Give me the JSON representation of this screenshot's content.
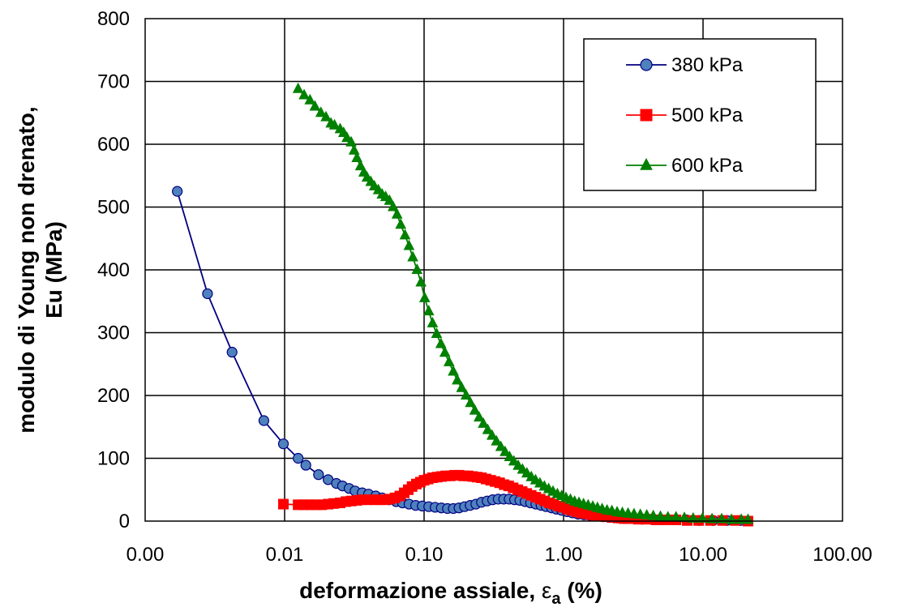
{
  "chart_data": {
    "type": "scatter",
    "x_scale": "log",
    "xlim": [
      0.001,
      100
    ],
    "ylim": [
      0,
      800
    ],
    "grid": true,
    "legend_position": "top-right",
    "xlabel_main": "deformazione assiale, ",
    "xlabel_symbol": "ε",
    "xlabel_subscript": "a",
    "xlabel_unit": " (%)",
    "ylabel_line1": "modulo di Young non drenato,",
    "ylabel_line2": "Eu (MPa)",
    "x_tick_labels": [
      "0.00",
      "0.01",
      "0.10",
      "1.00",
      "10.00",
      "100.00"
    ],
    "y_tick_labels": [
      "0",
      "100",
      "200",
      "300",
      "400",
      "500",
      "600",
      "700",
      "800"
    ],
    "series": [
      {
        "name": "380 kPa",
        "color": "#000080",
        "marker_fill": "#4F81BD",
        "marker": "circle",
        "points": [
          [
            0.0017,
            525
          ],
          [
            0.0028,
            362
          ],
          [
            0.0042,
            269
          ],
          [
            0.0071,
            160
          ],
          [
            0.0098,
            123
          ],
          [
            0.0125,
            100
          ],
          [
            0.0142,
            89
          ],
          [
            0.0175,
            74
          ],
          [
            0.0205,
            66
          ],
          [
            0.0235,
            60
          ],
          [
            0.026,
            56
          ],
          [
            0.029,
            52
          ],
          [
            0.032,
            48
          ],
          [
            0.036,
            45
          ],
          [
            0.04,
            43
          ],
          [
            0.045,
            40
          ],
          [
            0.05,
            37
          ],
          [
            0.056,
            34
          ],
          [
            0.063,
            31
          ],
          [
            0.07,
            29
          ],
          [
            0.078,
            27
          ],
          [
            0.087,
            25
          ],
          [
            0.097,
            24
          ],
          [
            0.108,
            23
          ],
          [
            0.12,
            22
          ],
          [
            0.133,
            21
          ],
          [
            0.147,
            20
          ],
          [
            0.162,
            20
          ],
          [
            0.178,
            21
          ],
          [
            0.195,
            23
          ],
          [
            0.214,
            25
          ],
          [
            0.235,
            27
          ],
          [
            0.258,
            30
          ],
          [
            0.283,
            32
          ],
          [
            0.31,
            34
          ],
          [
            0.34,
            35
          ],
          [
            0.372,
            35
          ],
          [
            0.407,
            35
          ],
          [
            0.445,
            34
          ],
          [
            0.486,
            33
          ],
          [
            0.53,
            31
          ],
          [
            0.58,
            29
          ],
          [
            0.633,
            27
          ],
          [
            0.69,
            25
          ],
          [
            0.75,
            23
          ],
          [
            0.82,
            21
          ],
          [
            0.89,
            19
          ],
          [
            0.97,
            17
          ],
          [
            1.06,
            15
          ],
          [
            1.16,
            13
          ],
          [
            1.27,
            11
          ],
          [
            1.4,
            10
          ],
          [
            1.55,
            9
          ],
          [
            1.72,
            8
          ],
          [
            1.92,
            7
          ],
          [
            2.15,
            6
          ],
          [
            2.42,
            5
          ],
          [
            2.75,
            4
          ],
          [
            3.15,
            4
          ],
          [
            3.65,
            3
          ],
          [
            4.3,
            3
          ],
          [
            5.1,
            2
          ],
          [
            6.2,
            2
          ],
          [
            7.6,
            2
          ],
          [
            9.4,
            1
          ],
          [
            11.8,
            1
          ],
          [
            14.8,
            1
          ],
          [
            18.5,
            1
          ]
        ]
      },
      {
        "name": "500 kPa",
        "color": "#FF0000",
        "marker_fill": "#FF0000",
        "marker": "square",
        "points": [
          [
            0.0098,
            27
          ],
          [
            0.0125,
            26
          ],
          [
            0.0138,
            26
          ],
          [
            0.0152,
            26
          ],
          [
            0.0168,
            26
          ],
          [
            0.0185,
            26
          ],
          [
            0.0205,
            27
          ],
          [
            0.0225,
            28
          ],
          [
            0.025,
            29
          ],
          [
            0.0275,
            31
          ],
          [
            0.03,
            32
          ],
          [
            0.033,
            33
          ],
          [
            0.036,
            34
          ],
          [
            0.04,
            34
          ],
          [
            0.044,
            34
          ],
          [
            0.048,
            34
          ],
          [
            0.052,
            34
          ],
          [
            0.057,
            35
          ],
          [
            0.062,
            37
          ],
          [
            0.067,
            40
          ],
          [
            0.072,
            45
          ],
          [
            0.077,
            50
          ],
          [
            0.082,
            55
          ],
          [
            0.088,
            59
          ],
          [
            0.094,
            62
          ],
          [
            0.1,
            65
          ],
          [
            0.107,
            67
          ],
          [
            0.115,
            69
          ],
          [
            0.124,
            70
          ],
          [
            0.133,
            71
          ],
          [
            0.143,
            72
          ],
          [
            0.154,
            72
          ],
          [
            0.166,
            73
          ],
          [
            0.178,
            73
          ],
          [
            0.192,
            72
          ],
          [
            0.207,
            72
          ],
          [
            0.223,
            71
          ],
          [
            0.24,
            70
          ],
          [
            0.258,
            69
          ],
          [
            0.278,
            67
          ],
          [
            0.3,
            65
          ],
          [
            0.323,
            63
          ],
          [
            0.348,
            61
          ],
          [
            0.375,
            58
          ],
          [
            0.404,
            56
          ],
          [
            0.435,
            53
          ],
          [
            0.469,
            50
          ],
          [
            0.505,
            47
          ],
          [
            0.544,
            44
          ],
          [
            0.586,
            41
          ],
          [
            0.632,
            38
          ],
          [
            0.68,
            35
          ],
          [
            0.733,
            32
          ],
          [
            0.79,
            29
          ],
          [
            0.85,
            27
          ],
          [
            0.92,
            24
          ],
          [
            0.99,
            22
          ],
          [
            1.07,
            19
          ],
          [
            1.15,
            17
          ],
          [
            1.24,
            15
          ],
          [
            1.34,
            13
          ],
          [
            1.45,
            12
          ],
          [
            1.57,
            10
          ],
          [
            1.7,
            9
          ],
          [
            1.85,
            8
          ],
          [
            2.02,
            7
          ],
          [
            2.22,
            6
          ],
          [
            2.45,
            5
          ],
          [
            2.72,
            4
          ],
          [
            3.05,
            4
          ],
          [
            3.45,
            3
          ],
          [
            3.95,
            3
          ],
          [
            4.6,
            2
          ],
          [
            5.4,
            2
          ],
          [
            6.4,
            2
          ],
          [
            7.7,
            1
          ],
          [
            9.3,
            1
          ],
          [
            11.3,
            1
          ],
          [
            13.8,
            1
          ],
          [
            17,
            1
          ],
          [
            21,
            0
          ]
        ]
      },
      {
        "name": "600 kPa",
        "color": "#008000",
        "marker_fill": "#008000",
        "marker": "triangle",
        "points": [
          [
            0.0125,
            688
          ],
          [
            0.0138,
            678
          ],
          [
            0.0152,
            670
          ],
          [
            0.0165,
            660
          ],
          [
            0.0182,
            650
          ],
          [
            0.0198,
            643
          ],
          [
            0.0215,
            633
          ],
          [
            0.0228,
            630
          ],
          [
            0.025,
            624
          ],
          [
            0.0265,
            618
          ],
          [
            0.028,
            610
          ],
          [
            0.03,
            603
          ],
          [
            0.0315,
            590
          ],
          [
            0.033,
            578
          ],
          [
            0.035,
            565
          ],
          [
            0.037,
            555
          ],
          [
            0.039,
            547
          ],
          [
            0.0415,
            540
          ],
          [
            0.044,
            533
          ],
          [
            0.047,
            527
          ],
          [
            0.05,
            520
          ],
          [
            0.053,
            516
          ],
          [
            0.0565,
            510
          ],
          [
            0.06,
            500
          ],
          [
            0.064,
            488
          ],
          [
            0.068,
            472
          ],
          [
            0.073,
            455
          ],
          [
            0.078,
            438
          ],
          [
            0.083,
            420
          ],
          [
            0.089,
            400
          ],
          [
            0.095,
            380
          ],
          [
            0.101,
            355
          ],
          [
            0.108,
            334
          ],
          [
            0.115,
            315
          ],
          [
            0.123,
            298
          ],
          [
            0.132,
            282
          ],
          [
            0.141,
            268
          ],
          [
            0.151,
            253
          ],
          [
            0.162,
            238
          ],
          [
            0.173,
            224
          ],
          [
            0.186,
            212
          ],
          [
            0.2,
            200
          ],
          [
            0.215,
            188
          ],
          [
            0.231,
            176
          ],
          [
            0.248,
            165
          ],
          [
            0.266,
            155
          ],
          [
            0.286,
            145
          ],
          [
            0.307,
            136
          ],
          [
            0.33,
            127
          ],
          [
            0.355,
            118
          ],
          [
            0.381,
            110
          ],
          [
            0.41,
            102
          ],
          [
            0.44,
            95
          ],
          [
            0.473,
            88
          ],
          [
            0.508,
            82
          ],
          [
            0.546,
            76
          ],
          [
            0.587,
            70
          ],
          [
            0.63,
            65
          ],
          [
            0.677,
            60
          ],
          [
            0.728,
            55
          ],
          [
            0.782,
            51
          ],
          [
            0.84,
            47
          ],
          [
            0.903,
            43
          ],
          [
            0.97,
            40
          ],
          [
            1.04,
            37
          ],
          [
            1.12,
            34
          ],
          [
            1.2,
            31
          ],
          [
            1.29,
            29
          ],
          [
            1.39,
            27
          ],
          [
            1.5,
            25
          ],
          [
            1.62,
            23
          ],
          [
            1.75,
            21
          ],
          [
            1.89,
            19
          ],
          [
            2.05,
            17
          ],
          [
            2.22,
            16
          ],
          [
            2.42,
            14
          ],
          [
            2.64,
            13
          ],
          [
            2.9,
            12
          ],
          [
            3.2,
            11
          ],
          [
            3.55,
            10
          ],
          [
            3.95,
            9
          ],
          [
            4.4,
            8
          ],
          [
            4.95,
            7
          ],
          [
            5.6,
            6
          ],
          [
            6.4,
            6
          ],
          [
            7.35,
            5
          ],
          [
            8.5,
            4
          ],
          [
            9.9,
            4
          ],
          [
            11.6,
            3
          ],
          [
            13.6,
            3
          ],
          [
            16,
            2
          ],
          [
            18.8,
            2
          ],
          [
            21,
            2
          ]
        ]
      }
    ]
  }
}
